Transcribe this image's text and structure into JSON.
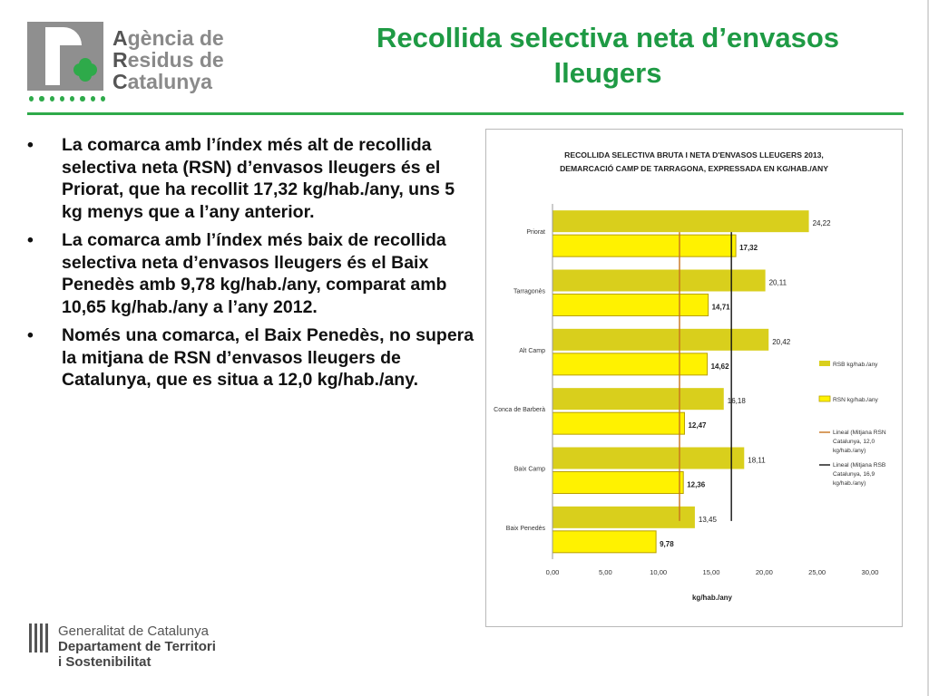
{
  "logo": {
    "line1_cap": "A",
    "line1_rest": "gència de",
    "line2_cap": "R",
    "line2_rest": "esidus de",
    "line3_cap": "C",
    "line3_rest": "atalunya"
  },
  "title": {
    "line1": "Recollida selectiva neta d’envasos",
    "line2": "lleugers"
  },
  "bullets": [
    "La comarca amb l’índex més alt de recollida selectiva neta (RSN) d’envasos lleugers és el Priorat, que ha recollit 17,32 kg/hab./any, uns 5 kg menys que a l’any anterior.",
    "La comarca amb l’índex més baix de recollida selectiva neta d’envasos lleugers és el Baix Penedès amb 9,78 kg/hab./any, comparat amb 10,65 kg/hab./any a l’any 2012.",
    "Només una comarca, el Baix Penedès, no supera la mitjana de RSN d’envasos lleugers de Catalunya, que es situa a 12,0 kg/hab./any."
  ],
  "footer": {
    "line1": "Generalitat de Catalunya",
    "line2": "Departament de Territori",
    "line3": "i Sostenibilitat"
  },
  "chart_data": {
    "type": "bar",
    "orientation": "horizontal",
    "title_line1": "RECOLLIDA SELECTIVA BRUTA I NETA D'ENVASOS LLEUGERS 2013,",
    "title_line2": "DEMARCACIÓ CAMP DE TARRAGONA, EXPRESSADA EN KG/HAB./ANY",
    "xlabel": "kg/hab./any",
    "xlim": [
      0,
      30
    ],
    "xticks": [
      "0,00",
      "5,00",
      "10,00",
      "15,00",
      "20,00",
      "25,00",
      "30,00"
    ],
    "categories": [
      "Priorat",
      "Tarragonès",
      "Alt Camp",
      "Conca de Barberà",
      "Baix Camp",
      "Baix Penedès"
    ],
    "series": [
      {
        "name": "RSB kg/hab./any",
        "color": "#d9cf1c",
        "values": [
          24.22,
          20.11,
          20.42,
          16.18,
          18.11,
          13.45
        ],
        "labels": [
          "24,22",
          "20,11",
          "20,42",
          "16,18",
          "18,11",
          "13,45"
        ]
      },
      {
        "name": "RSN kg/hab./any",
        "color": "#fff200",
        "values": [
          17.32,
          14.71,
          14.62,
          12.47,
          12.36,
          9.78
        ],
        "labels": [
          "17,32",
          "14,71",
          "14,62",
          "12,47",
          "12,36",
          "9,78"
        ]
      }
    ],
    "reference_lines": [
      {
        "name_lines": [
          "Lineal (Mitjana RSN",
          "Catalunya, 12,0",
          "kg/hab./any)"
        ],
        "value": 12.0,
        "color": "#c8731e"
      },
      {
        "name_lines": [
          "Lineal (Mitjana RSB",
          "Catalunya, 16,9",
          "kg/hab./any)"
        ],
        "value": 16.9,
        "color": "#111111"
      }
    ],
    "legend_position": "right",
    "grid": false
  }
}
